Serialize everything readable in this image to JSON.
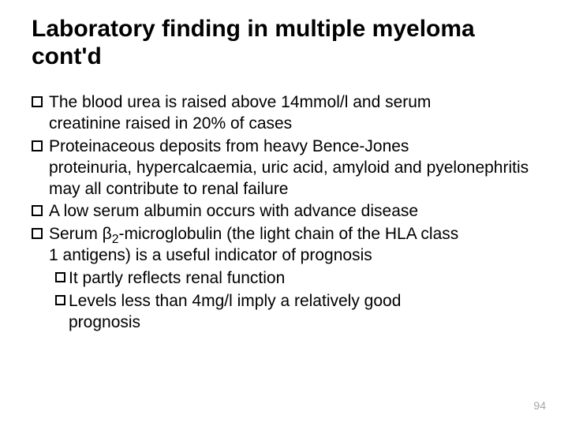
{
  "background_color": "#ffffff",
  "text_color": "#000000",
  "pagenum_color": "#a6a6a6",
  "title_fontsize": 30,
  "body_fontsize": 21,
  "title": "Laboratory finding in multiple myeloma cont'd",
  "bullets": {
    "b1a": "The blood urea is raised above 14mmol/l and serum",
    "b1b": "creatinine raised in 20% of cases",
    "b2a": "Proteinaceous deposits from heavy Bence-Jones",
    "b2b": "proteinuria, hypercalcaemia, uric acid, amyloid and pyelonephritis may all contribute to renal failure",
    "b3": "A low serum albumin occurs with advance disease",
    "b4a_pre": "Serum β",
    "b4a_sub": "2",
    "b4a_post": "-microglobulin (the light chain of the HLA class",
    "b4b": "1 antigens) is a useful indicator of prognosis",
    "b4_1": "It partly reflects renal function",
    "b4_2a": "Levels less than 4mg/l imply a relatively good",
    "b4_2b": "prognosis"
  },
  "pagenum": "94"
}
